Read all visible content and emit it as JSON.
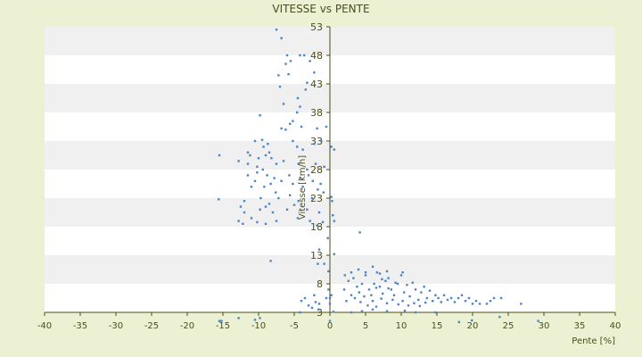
{
  "chart_data": {
    "type": "scatter",
    "title": "VITESSE vs PENTE",
    "xlabel": "Pente [%]",
    "ylabel": "Vitesse [km/h]",
    "xlim": [
      -40,
      40
    ],
    "ylim": [
      3,
      53
    ],
    "x_ticks": [
      -40,
      -35,
      -30,
      -25,
      -20,
      -15,
      -10,
      -5,
      0,
      5,
      10,
      15,
      20,
      25,
      30,
      35,
      40
    ],
    "y_ticks": [
      3,
      8,
      13,
      18,
      23,
      28,
      33,
      38,
      43,
      48,
      53
    ],
    "grid": "horizontal-bands",
    "legend": "none",
    "colors": {
      "series": "#4a86c8",
      "background": "#ebf1d2",
      "axis": "#4d4d1a",
      "band": "#f0f0f0"
    },
    "series": [
      {
        "color": "#4a86c8",
        "points": [
          [
            -7.5,
            52.5
          ],
          [
            -6.8,
            51
          ],
          [
            -6,
            48
          ],
          [
            -5.5,
            47
          ],
          [
            -4.2,
            48
          ],
          [
            -3.6,
            48
          ],
          [
            -2.8,
            47
          ],
          [
            -6.2,
            46.5
          ],
          [
            -7.2,
            44.5
          ],
          [
            -5.8,
            44.7
          ],
          [
            -3.2,
            43.2
          ],
          [
            -3.4,
            42
          ],
          [
            -7,
            42.5
          ],
          [
            -2.2,
            45
          ],
          [
            -6.5,
            39.5
          ],
          [
            -4.5,
            40.5
          ],
          [
            -4.2,
            39
          ],
          [
            -4.6,
            38
          ],
          [
            -9.8,
            37.5
          ],
          [
            -5.2,
            36.5
          ],
          [
            -5.6,
            36
          ],
          [
            -6.2,
            35
          ],
          [
            -6.8,
            35.2
          ],
          [
            -4,
            35.5
          ],
          [
            -1.8,
            35.2
          ],
          [
            -0.5,
            35.5
          ],
          [
            -9.5,
            33.2
          ],
          [
            -8.7,
            32.5
          ],
          [
            -10.5,
            33
          ],
          [
            -9.3,
            32
          ],
          [
            -11.5,
            31
          ],
          [
            -9,
            30.5
          ],
          [
            -8.5,
            31
          ],
          [
            -10,
            30
          ],
          [
            -11.2,
            30.5
          ],
          [
            -8.2,
            30
          ],
          [
            -5.2,
            33
          ],
          [
            -4.6,
            32
          ],
          [
            -3.8,
            31.5
          ],
          [
            -2.2,
            32.5
          ],
          [
            -1.2,
            33
          ],
          [
            0.2,
            32
          ],
          [
            0.6,
            31.5
          ],
          [
            -15.5,
            30.5
          ],
          [
            -12.8,
            29.5
          ],
          [
            -11.5,
            29
          ],
          [
            -10.2,
            28.5
          ],
          [
            -9.4,
            28
          ],
          [
            -7.5,
            29
          ],
          [
            -6.5,
            29.5
          ],
          [
            -4.4,
            29
          ],
          [
            -2,
            29
          ],
          [
            -0.8,
            28.5
          ],
          [
            -3.2,
            28
          ],
          [
            -11.5,
            27
          ],
          [
            -10.2,
            27.5
          ],
          [
            -8.8,
            27
          ],
          [
            -7.8,
            26.5
          ],
          [
            -6.8,
            26
          ],
          [
            -5.7,
            27
          ],
          [
            -4.2,
            26.5
          ],
          [
            -3,
            27
          ],
          [
            -2.4,
            26
          ],
          [
            -1.3,
            25.5
          ],
          [
            -10.5,
            26
          ],
          [
            -11,
            25
          ],
          [
            -9.2,
            25
          ],
          [
            -8.3,
            25.5
          ],
          [
            -5.2,
            25.5
          ],
          [
            -3.8,
            25
          ],
          [
            -1.7,
            24.5
          ],
          [
            -0.9,
            24
          ],
          [
            -15.6,
            22.8
          ],
          [
            -12,
            22.5
          ],
          [
            -9.7,
            23
          ],
          [
            -7.6,
            24
          ],
          [
            -7.2,
            23
          ],
          [
            -5.6,
            23.5
          ],
          [
            -4.4,
            22.5
          ],
          [
            -2.5,
            23
          ],
          [
            0.3,
            22.5
          ],
          [
            0.2,
            23.2
          ],
          [
            -12.5,
            21.5
          ],
          [
            -12,
            20.5
          ],
          [
            -9.8,
            21
          ],
          [
            -9,
            21.5
          ],
          [
            -8.5,
            22
          ],
          [
            -8,
            20.5
          ],
          [
            -6,
            21
          ],
          [
            -5,
            21.8
          ],
          [
            -3.2,
            21
          ],
          [
            -1.5,
            20.5
          ],
          [
            0.4,
            20
          ],
          [
            -12.8,
            19
          ],
          [
            -12.2,
            18.5
          ],
          [
            -11,
            19.5
          ],
          [
            -10.2,
            18.8
          ],
          [
            -9,
            18.5
          ],
          [
            -7.5,
            19
          ],
          [
            -4.5,
            19.5
          ],
          [
            -2.8,
            19
          ],
          [
            -1.8,
            18.2
          ],
          [
            -1,
            18.8
          ],
          [
            0.6,
            19
          ],
          [
            4.2,
            17
          ],
          [
            -0.3,
            16
          ],
          [
            -1.5,
            14
          ],
          [
            -1.7,
            11.5
          ],
          [
            -0.8,
            11.5
          ],
          [
            -8.3,
            12
          ],
          [
            0.6,
            13.2
          ],
          [
            -0.2,
            10.2
          ],
          [
            -3.5,
            5.5
          ],
          [
            -4,
            5
          ],
          [
            -2.2,
            6
          ],
          [
            -2,
            4.8
          ],
          [
            -1.5,
            4.5
          ],
          [
            -2.5,
            3.8
          ],
          [
            -0.5,
            5.5
          ],
          [
            0,
            4.5
          ],
          [
            0.2,
            6
          ],
          [
            -0.2,
            7
          ],
          [
            0,
            5.5
          ],
          [
            -15.5,
            1.5
          ],
          [
            -15.2,
            1.5
          ],
          [
            -12.8,
            2
          ],
          [
            -10.5,
            1.7
          ],
          [
            -9.8,
            2
          ],
          [
            -4.2,
            3
          ],
          [
            -3,
            4.2
          ],
          [
            -1.6,
            3.5
          ],
          [
            0.5,
            3.1
          ],
          [
            0,
            1.5
          ],
          [
            2,
            7
          ],
          [
            2.6,
            8.5
          ],
          [
            3.3,
            9
          ],
          [
            3.8,
            7.5
          ],
          [
            4.1,
            6.5
          ],
          [
            4.5,
            8
          ],
          [
            5,
            9.5
          ],
          [
            5.5,
            7
          ],
          [
            5.8,
            6
          ],
          [
            6.2,
            8
          ],
          [
            6.6,
            10
          ],
          [
            7,
            7.5
          ],
          [
            7.4,
            6.3
          ],
          [
            7.8,
            8.5
          ],
          [
            8.2,
            9
          ],
          [
            8.6,
            7
          ],
          [
            9,
            6
          ],
          [
            9.5,
            8
          ],
          [
            10,
            9.5
          ],
          [
            10.4,
            6.5
          ],
          [
            10.8,
            7.8
          ],
          [
            11.2,
            5.8
          ],
          [
            11.6,
            8.2
          ],
          [
            12,
            7
          ],
          [
            12.4,
            5.2
          ],
          [
            12.8,
            6.5
          ],
          [
            13.2,
            7.5
          ],
          [
            13.6,
            5.5
          ],
          [
            14,
            6.8
          ],
          [
            14.4,
            5
          ],
          [
            14.8,
            6
          ],
          [
            15.2,
            5.5
          ],
          [
            15.6,
            4.8
          ],
          [
            16,
            6
          ],
          [
            16.5,
            5.2
          ],
          [
            17,
            5.5
          ],
          [
            17.5,
            4.8
          ],
          [
            18,
            5.5
          ],
          [
            18.5,
            6
          ],
          [
            19,
            5
          ],
          [
            19.5,
            5.5
          ],
          [
            20,
            4.5
          ],
          [
            20.5,
            5
          ],
          [
            21,
            4.5
          ],
          [
            22,
            4.5
          ],
          [
            22.5,
            5
          ],
          [
            23,
            5.5
          ],
          [
            24,
            5.5
          ],
          [
            26.8,
            4.5
          ],
          [
            2.3,
            5
          ],
          [
            3,
            6
          ],
          [
            3.5,
            5.5
          ],
          [
            4.3,
            4.8
          ],
          [
            4.8,
            5.8
          ],
          [
            5.3,
            4.2
          ],
          [
            6,
            5
          ],
          [
            6.5,
            4
          ],
          [
            7.2,
            5.4
          ],
          [
            8,
            4.6
          ],
          [
            8.8,
            5.2
          ],
          [
            9.6,
            4.4
          ],
          [
            10.2,
            5
          ],
          [
            11,
            4.2
          ],
          [
            11.8,
            4.6
          ],
          [
            12.6,
            4.1
          ],
          [
            13.4,
            4.7
          ],
          [
            2.1,
            9.5
          ],
          [
            3,
            10
          ],
          [
            4,
            10.5
          ],
          [
            5,
            10
          ],
          [
            6,
            11
          ],
          [
            7,
            9.8
          ],
          [
            8,
            10.2
          ],
          [
            10.2,
            10
          ],
          [
            8.2,
            7.2
          ],
          [
            9.2,
            8.2
          ],
          [
            6.5,
            7.3
          ],
          [
            7.3,
            8.8
          ],
          [
            3,
            3
          ],
          [
            4.5,
            3.2
          ],
          [
            6,
            3.5
          ],
          [
            8,
            3.2
          ],
          [
            10.5,
            3.3
          ],
          [
            12,
            3
          ],
          [
            14.8,
            3
          ],
          [
            18.1,
            1.3
          ],
          [
            19.9,
            1.6
          ],
          [
            23.8,
            2.2
          ],
          [
            29.2,
            1.5
          ]
        ]
      }
    ]
  }
}
